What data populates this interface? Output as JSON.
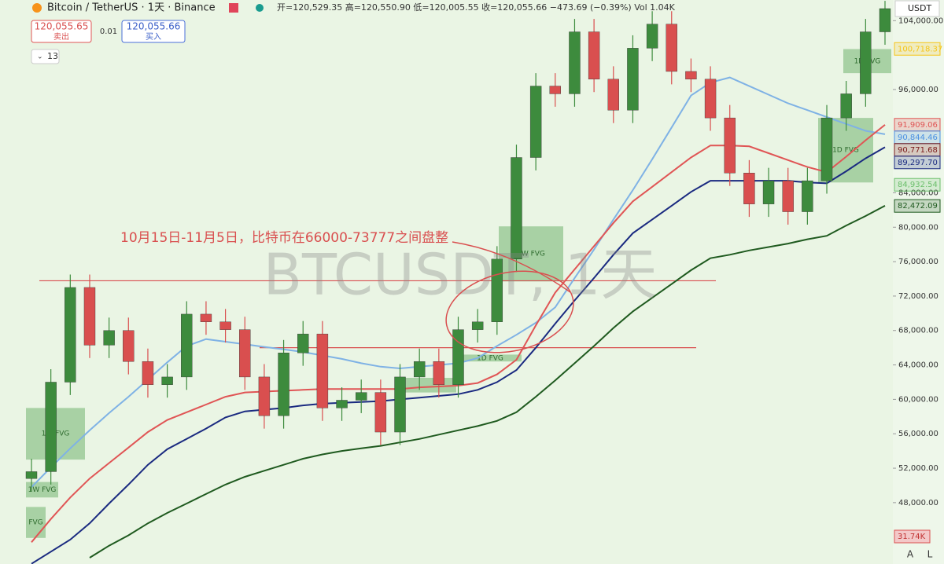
{
  "header": {
    "symbol": "Bitcoin / TetherUS · 1天 · Binance",
    "ohlc": "开=120,529.35 高=120,550.90 低=120,005.55 收=120,055.66 −473.69 (−0.39%) Vol 1.04K",
    "sell_price": "120,055.65",
    "sell_label": "卖出",
    "spread": "0.01",
    "buy_price": "120,055.66",
    "buy_label": "买入",
    "interval": "13",
    "currency": "USDT",
    "corner_a": "A",
    "corner_l": "L"
  },
  "chart_data": {
    "type": "candlestick",
    "watermark": "BTCUSDT, 1天",
    "annotation": "10月15日-11月5日，比特币在66000-73777之间盘整",
    "up_color": "#3d8b3d",
    "down_color": "#d94f4f",
    "ylim": [
      40870,
      106400
    ],
    "yticks": [
      {
        "value": 104000,
        "label": "104,000.00"
      },
      {
        "value": 96000,
        "label": "96,000.00"
      },
      {
        "value": 84000,
        "label": "84,000.00"
      },
      {
        "value": 80000,
        "label": "80,000.00"
      },
      {
        "value": 76000,
        "label": "76,000.00"
      },
      {
        "value": 72000,
        "label": "72,000.00"
      },
      {
        "value": 68000,
        "label": "68,000.00"
      },
      {
        "value": 64000,
        "label": "64,000.00"
      },
      {
        "value": 60000,
        "label": "60,000.00"
      },
      {
        "value": 56000,
        "label": "56,000.00"
      },
      {
        "value": 52000,
        "label": "52,000.00"
      },
      {
        "value": 48000,
        "label": "48,000.00"
      }
    ],
    "open": [
      50800,
      51600,
      62000,
      73000,
      66300,
      68000,
      64400,
      61700,
      62600,
      69900,
      69000,
      68100,
      62600,
      58100,
      65400,
      67600,
      59000,
      59900,
      60800,
      56200,
      62600,
      64400,
      61700,
      68100,
      69000,
      76300,
      88100,
      96400,
      95500,
      102700,
      97200,
      93600,
      100800,
      103600,
      98100,
      97200,
      92700,
      86300,
      82700,
      85400,
      81800,
      85400,
      92700,
      95500,
      102700
    ],
    "high": [
      53100,
      63500,
      74500,
      74500,
      69500,
      69500,
      65900,
      64100,
      71400,
      71400,
      70500,
      69600,
      64100,
      66900,
      69100,
      69100,
      61400,
      62300,
      62300,
      64100,
      65900,
      65900,
      69600,
      70500,
      77800,
      89600,
      97900,
      97900,
      104200,
      104200,
      98700,
      102300,
      105100,
      105100,
      99600,
      98700,
      94200,
      87800,
      86900,
      86900,
      86900,
      94200,
      97000,
      104200,
      106300
    ],
    "low": [
      49300,
      50100,
      60500,
      64800,
      64800,
      62900,
      60200,
      60200,
      61100,
      67500,
      66600,
      61100,
      56600,
      56600,
      63900,
      57500,
      57500,
      58400,
      54700,
      54700,
      61100,
      60200,
      60200,
      66600,
      67500,
      74800,
      86600,
      94000,
      94000,
      95700,
      92100,
      92100,
      99300,
      96600,
      95700,
      91200,
      84800,
      81200,
      81200,
      80300,
      80300,
      83900,
      91200,
      94000,
      101200
    ],
    "close": [
      51600,
      62000,
      73000,
      66300,
      68000,
      64400,
      61700,
      62600,
      69900,
      69000,
      68100,
      62600,
      58100,
      65400,
      67600,
      59000,
      59900,
      60800,
      56200,
      62600,
      64400,
      61700,
      68100,
      69000,
      76300,
      88100,
      96400,
      95500,
      102700,
      97200,
      93600,
      100800,
      103600,
      98100,
      97200,
      92700,
      86300,
      82700,
      85400,
      81800,
      85400,
      92700,
      95500,
      102700,
      105400
    ],
    "lines": [
      {
        "color": "#7fb2e5",
        "values": [
          49800,
          52100,
          54300,
          56400,
          58400,
          60300,
          62300,
          64300,
          66200,
          67000,
          66700,
          66400,
          66100,
          65800,
          65500,
          65100,
          64700,
          64200,
          63800,
          63600,
          63800,
          64000,
          64200,
          64800,
          66200,
          67500,
          68900,
          70700,
          74100,
          77400,
          80900,
          84300,
          87900,
          91600,
          95300,
          96800,
          97400,
          96400,
          95400,
          94400,
          93600,
          92800,
          92000,
          91200,
          90800
        ]
      },
      {
        "color": "#e05555",
        "values": [
          43400,
          46100,
          48600,
          50800,
          52600,
          54400,
          56200,
          57600,
          58500,
          59400,
          60300,
          60800,
          60900,
          61000,
          61100,
          61200,
          61200,
          61200,
          61200,
          61200,
          61400,
          61500,
          61600,
          61900,
          62900,
          64600,
          68600,
          72400,
          75100,
          77800,
          80500,
          83000,
          84700,
          86400,
          88100,
          89500,
          89500,
          89400,
          88600,
          87800,
          87000,
          86400,
          88200,
          90100,
          91900
        ]
      },
      {
        "color": "#1a2a80",
        "values": [
          40900,
          42300,
          43700,
          45600,
          47900,
          50100,
          52400,
          54200,
          55400,
          56600,
          57900,
          58600,
          58800,
          59000,
          59300,
          59500,
          59600,
          59700,
          59800,
          60000,
          60200,
          60400,
          60600,
          61100,
          62000,
          63400,
          66000,
          68800,
          71500,
          74100,
          76800,
          79300,
          80900,
          82500,
          84100,
          85400,
          85400,
          85400,
          85400,
          85400,
          85200,
          85100,
          86500,
          88000,
          89300
        ]
      },
      {
        "color": "#1f5a1f",
        "values": [
          null,
          null,
          null,
          41600,
          43000,
          44200,
          45600,
          46800,
          47900,
          49000,
          50100,
          51000,
          51700,
          52400,
          53100,
          53600,
          54000,
          54300,
          54600,
          55000,
          55400,
          55900,
          56400,
          56900,
          57500,
          58500,
          60300,
          62200,
          64200,
          66200,
          68300,
          70200,
          71800,
          73400,
          75000,
          76400,
          76800,
          77300,
          77700,
          78100,
          78600,
          79000,
          80200,
          81300,
          82500
        ]
      }
    ],
    "levels": [
      73777,
      66000
    ],
    "zones": [
      {
        "top": 59000,
        "bottom": 53000,
        "label": "1W FVG"
      },
      {
        "top": 50400,
        "bottom": 48600,
        "label": "1W FVG"
      },
      {
        "top": 47500,
        "bottom": 43900,
        "label": "FVG"
      },
      {
        "top": 80100,
        "bottom": 73700,
        "label": "1W FVG"
      },
      {
        "top": 62500,
        "bottom": 60800
      },
      {
        "top": 65200,
        "bottom": 64400,
        "label": "1D FVG"
      },
      {
        "top": 92700,
        "bottom": 85200,
        "label": "1D FVG"
      },
      {
        "top": 100700,
        "bottom": 97900,
        "label": "1D FVG"
      }
    ],
    "price_tags": [
      {
        "value": 100718.37,
        "label": "100,718.37",
        "color": "#f5c518"
      },
      {
        "value": 91909.06,
        "label": "91,909.06",
        "color": "#e05555"
      },
      {
        "value": 90844.46,
        "label": "90,844.46",
        "color": "#4a90e2"
      },
      {
        "value": 90771.68,
        "label": "90,771.68",
        "color": "#7a1a1a"
      },
      {
        "value": 89297.7,
        "label": "89,297.70",
        "color": "#1a2a80"
      },
      {
        "value": 84932.54,
        "label": "84,932.54",
        "color": "#6cbf6c"
      },
      {
        "value": 82472.09,
        "label": "82,472.09",
        "color": "#1f5a1f"
      }
    ],
    "volume_tag": "31.74K"
  }
}
